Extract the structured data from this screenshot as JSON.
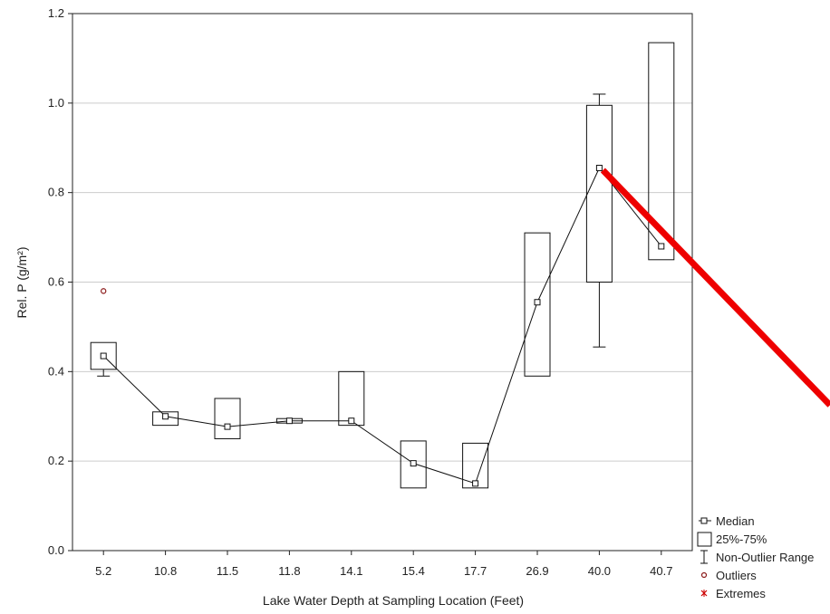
{
  "chart_data": {
    "type": "box",
    "xlabel": "Lake Water Depth at Sampling Location (Feet)",
    "ylabel": "Rel. P (g/m²)",
    "ylim": [
      0,
      1.2
    ],
    "yticks": [
      "0.0",
      "0.2",
      "0.4",
      "0.6",
      "0.8",
      "1.0",
      "1.2"
    ],
    "grid": "horizontal",
    "legend_position": "bottom-right",
    "categories": [
      "5.2",
      "10.8",
      "11.5",
      "11.8",
      "14.1",
      "15.4",
      "17.7",
      "26.9",
      "40.0",
      "40.7"
    ],
    "boxes": [
      {
        "median": 0.435,
        "q1": 0.405,
        "q3": 0.465,
        "whisker_low": 0.39,
        "whisker_high": 0.465,
        "outliers": [
          0.58
        ]
      },
      {
        "median": 0.3,
        "q1": 0.28,
        "q3": 0.31,
        "whisker_low": 0.28,
        "whisker_high": 0.31,
        "outliers": []
      },
      {
        "median": 0.277,
        "q1": 0.25,
        "q3": 0.34,
        "whisker_low": 0.25,
        "whisker_high": 0.34,
        "outliers": []
      },
      {
        "median": 0.29,
        "q1": 0.285,
        "q3": 0.295,
        "whisker_low": 0.285,
        "whisker_high": 0.295,
        "outliers": []
      },
      {
        "median": 0.29,
        "q1": 0.28,
        "q3": 0.4,
        "whisker_low": 0.28,
        "whisker_high": 0.4,
        "outliers": []
      },
      {
        "median": 0.195,
        "q1": 0.14,
        "q3": 0.245,
        "whisker_low": 0.14,
        "whisker_high": 0.245,
        "outliers": []
      },
      {
        "median": 0.15,
        "q1": 0.14,
        "q3": 0.24,
        "whisker_low": 0.14,
        "whisker_high": 0.24,
        "outliers": []
      },
      {
        "median": 0.555,
        "q1": 0.39,
        "q3": 0.71,
        "whisker_low": 0.39,
        "whisker_high": 0.71,
        "outliers": []
      },
      {
        "median": 0.855,
        "q1": 0.6,
        "q3": 0.995,
        "whisker_low": 0.455,
        "whisker_high": 1.02,
        "outliers": []
      },
      {
        "median": 0.68,
        "q1": 0.65,
        "q3": 1.135,
        "whisker_low": 0.65,
        "whisker_high": 1.135,
        "outliers": []
      }
    ],
    "legend": [
      "Median",
      "25%-75%",
      "Non-Outlier Range",
      "Outliers",
      "Extremes"
    ],
    "colors": {
      "box": "#111111",
      "grid": "#cccccc",
      "outlier": "#8b1a1a",
      "extreme": "#cc0000",
      "trend_arrow": "#ee0000"
    },
    "annotation": {
      "type": "red-line",
      "from": {
        "category": "40.0",
        "value": 0.85
      }
    }
  }
}
